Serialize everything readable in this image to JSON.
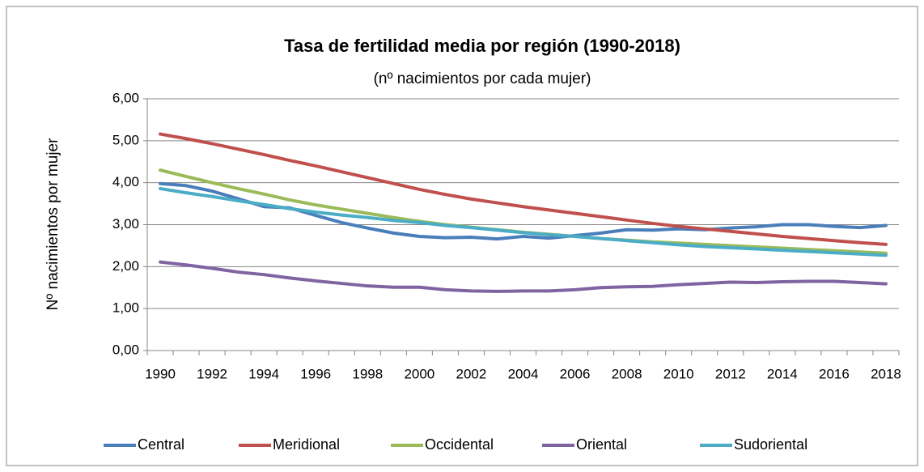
{
  "chart_data": {
    "type": "line",
    "title": "Tasa de fertilidad media por región (1990-2018)",
    "subtitle": "(nº nacimientos por cada mujer)",
    "y_label": "Nº nacimientos por mujer",
    "categories": [
      "1990",
      null,
      "1992",
      null,
      "1994",
      null,
      "1996",
      null,
      "1998",
      null,
      "2000",
      null,
      "2002",
      null,
      "2004",
      null,
      "2006",
      null,
      "2008",
      null,
      "2010",
      null,
      "2012",
      null,
      "2014",
      null,
      "2016",
      null,
      "2018"
    ],
    "series": [
      {
        "name": "Central",
        "color": "#4a7ebb",
        "values": [
          3.98,
          3.93,
          3.8,
          3.62,
          3.43,
          3.4,
          3.22,
          3.05,
          2.92,
          2.8,
          2.72,
          2.69,
          2.7,
          2.66,
          2.72,
          2.68,
          2.74,
          2.8,
          2.88,
          2.87,
          2.9,
          2.88,
          2.92,
          2.95,
          3.0,
          3.0,
          2.96,
          2.93,
          2.98
        ]
      },
      {
        "name": "Meridional",
        "color": "#c0504d",
        "values": [
          5.16,
          5.05,
          4.93,
          4.8,
          4.67,
          4.53,
          4.4,
          4.26,
          4.12,
          3.98,
          3.84,
          3.72,
          3.61,
          3.52,
          3.43,
          3.35,
          3.27,
          3.19,
          3.11,
          3.03,
          2.96,
          2.9,
          2.84,
          2.78,
          2.72,
          2.67,
          2.62,
          2.57,
          2.53
        ]
      },
      {
        "name": "Occidental",
        "color": "#9bbb59",
        "values": [
          4.3,
          4.15,
          4.0,
          3.86,
          3.73,
          3.59,
          3.47,
          3.37,
          3.27,
          3.17,
          3.08,
          3.0,
          2.94,
          2.88,
          2.82,
          2.77,
          2.72,
          2.67,
          2.63,
          2.59,
          2.56,
          2.53,
          2.5,
          2.47,
          2.44,
          2.41,
          2.38,
          2.35,
          2.32
        ]
      },
      {
        "name": "Oriental",
        "color": "#8064a2",
        "values": [
          2.11,
          2.04,
          1.96,
          1.87,
          1.81,
          1.73,
          1.66,
          1.6,
          1.54,
          1.51,
          1.51,
          1.45,
          1.42,
          1.41,
          1.42,
          1.42,
          1.45,
          1.5,
          1.52,
          1.53,
          1.57,
          1.6,
          1.63,
          1.62,
          1.64,
          1.65,
          1.65,
          1.62,
          1.59
        ]
      },
      {
        "name": "Sudoriental",
        "color": "#4bacc6",
        "values": [
          3.86,
          3.76,
          3.67,
          3.57,
          3.48,
          3.38,
          3.3,
          3.23,
          3.17,
          3.1,
          3.05,
          2.98,
          2.93,
          2.87,
          2.81,
          2.76,
          2.72,
          2.67,
          2.62,
          2.57,
          2.52,
          2.48,
          2.45,
          2.42,
          2.39,
          2.36,
          2.33,
          2.3,
          2.27
        ]
      }
    ],
    "ylim": [
      0,
      6
    ],
    "yticks": [
      {
        "value": 0,
        "label": "0,00"
      },
      {
        "value": 1,
        "label": "1,00"
      },
      {
        "value": 2,
        "label": "2,00"
      },
      {
        "value": 3,
        "label": "3,00"
      },
      {
        "value": 4,
        "label": "4,00"
      },
      {
        "value": 5,
        "label": "5,00"
      },
      {
        "value": 6,
        "label": "6,00"
      }
    ],
    "grid": true,
    "legend": "bottom"
  }
}
